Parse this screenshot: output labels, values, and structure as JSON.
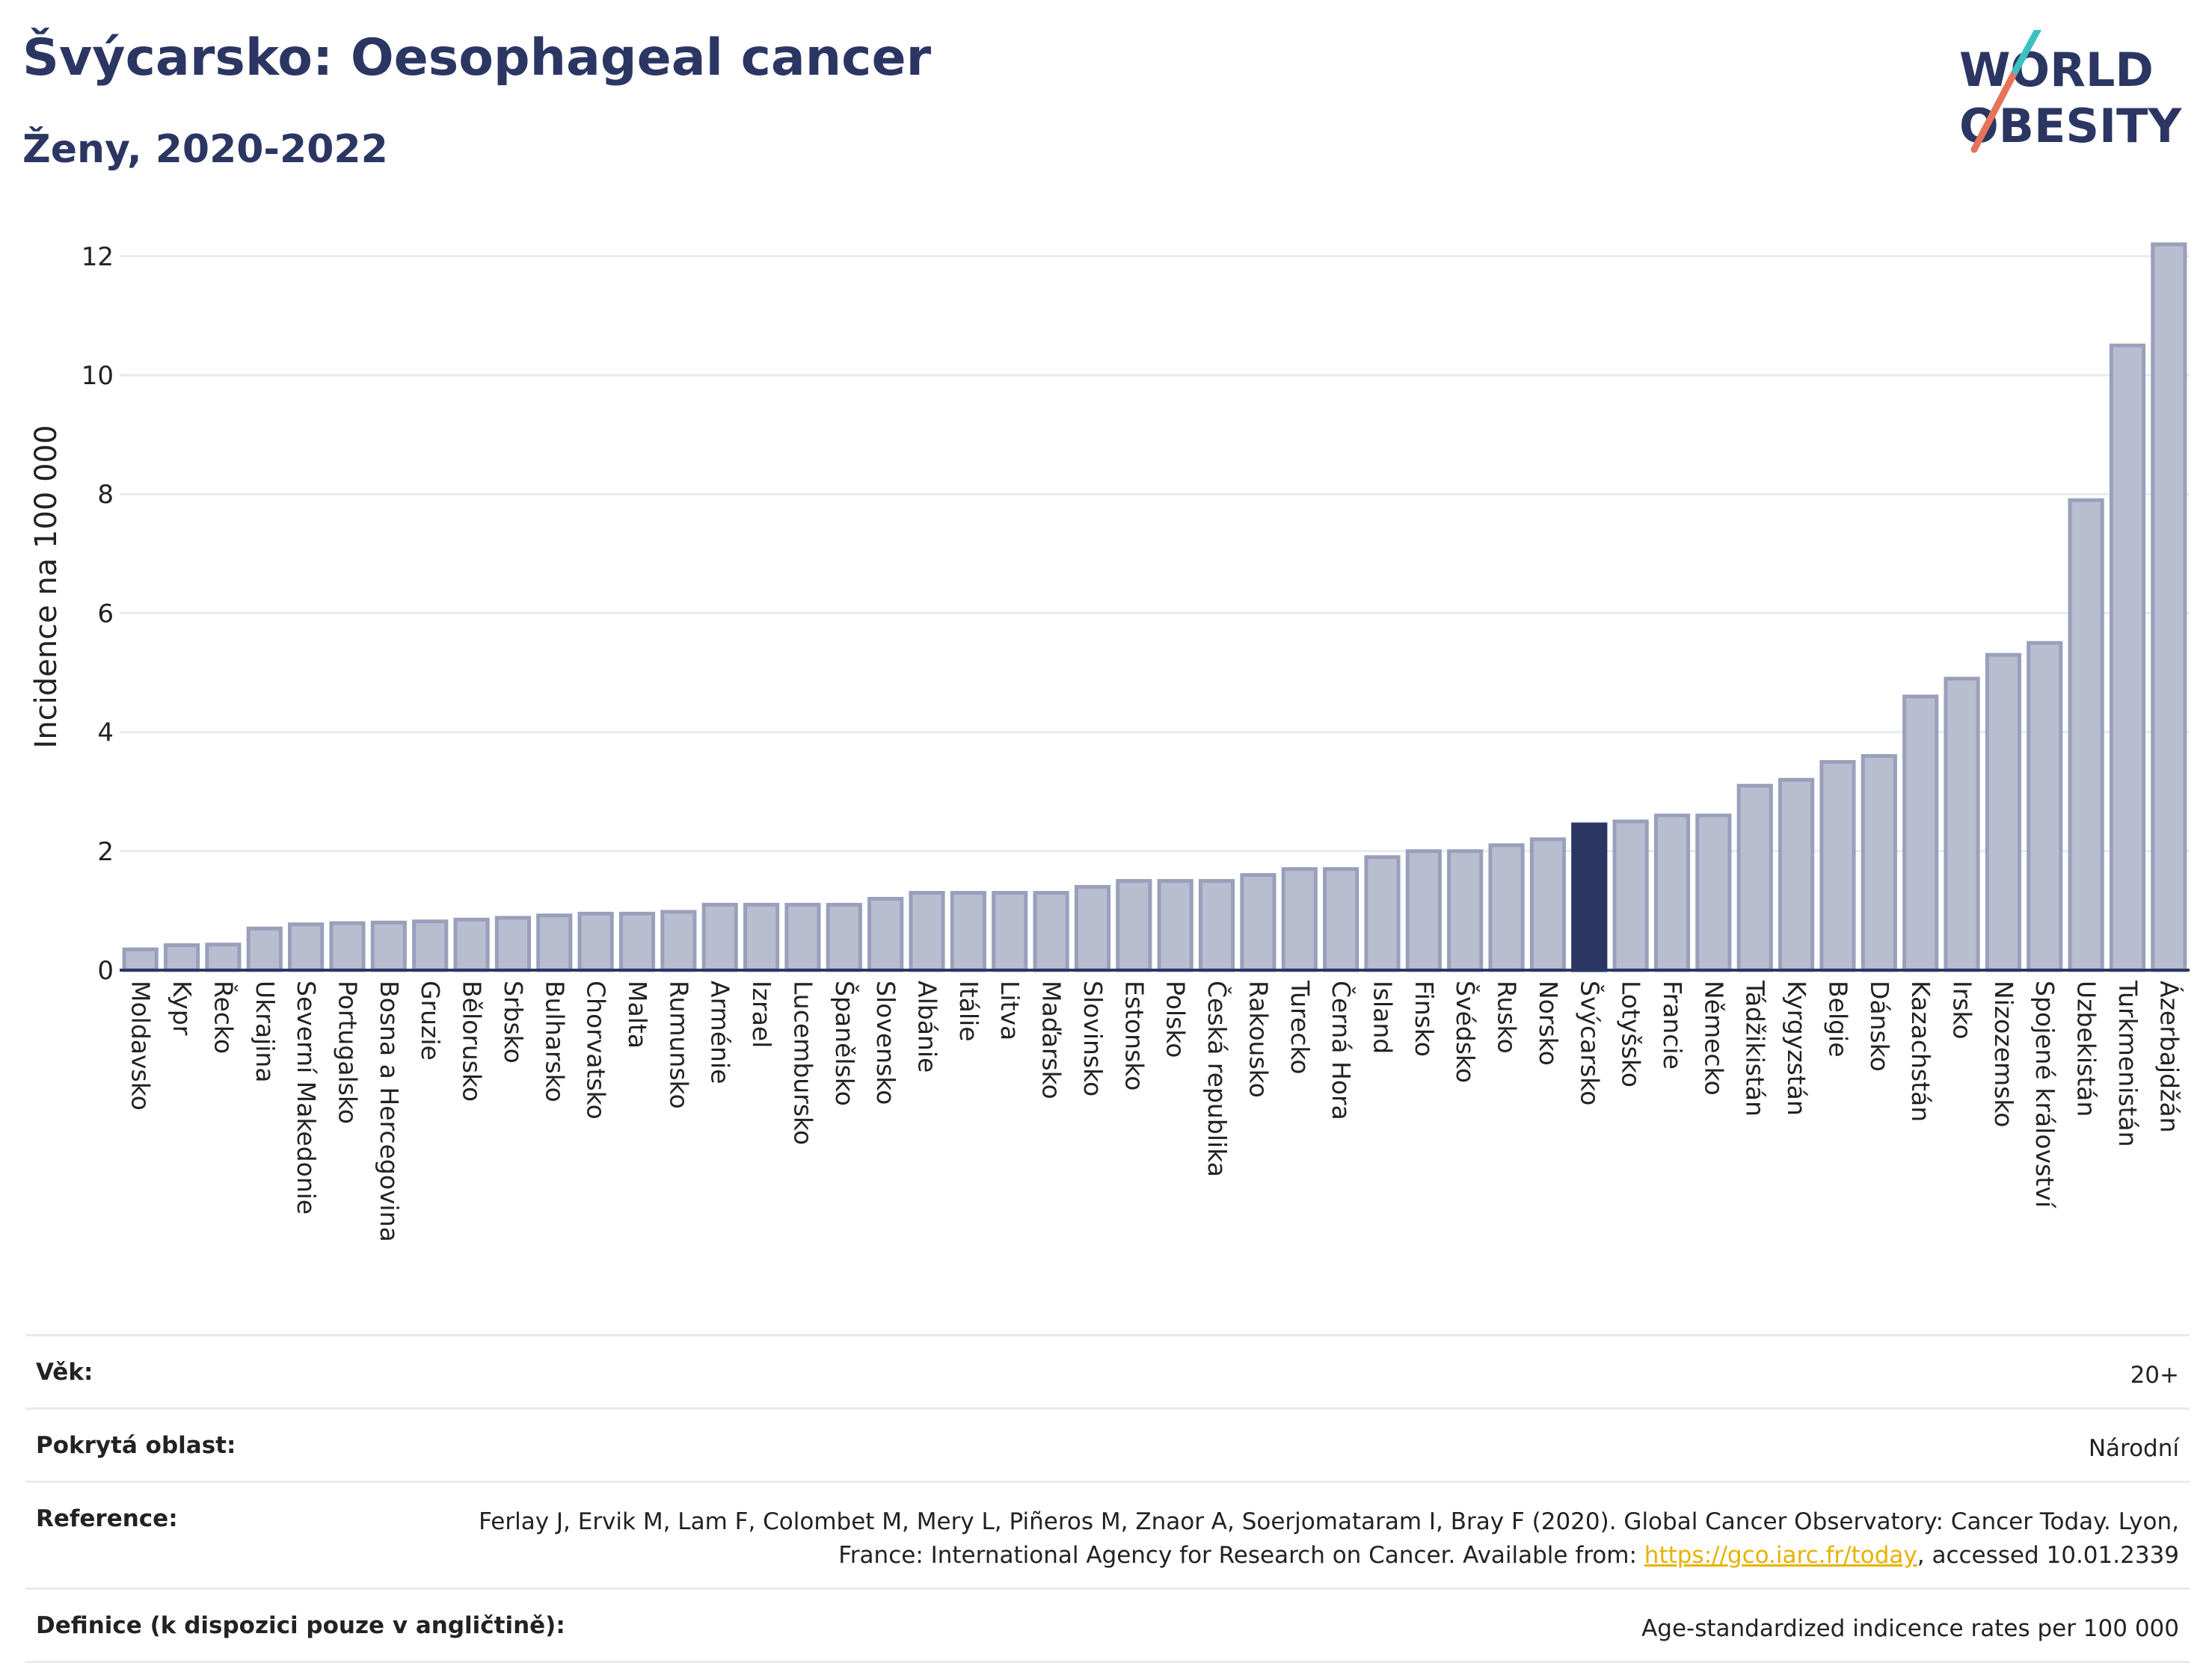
{
  "title": "Švýcarsko: Oesophageal cancer",
  "subtitle": "Ženy, 2020-2022",
  "logo": {
    "line1": "WORLD",
    "line2": "OBESITY",
    "accent_colors": [
      "#e8735a",
      "#3cc1c1"
    ]
  },
  "colors": {
    "bar": "#b9bdd0",
    "bar_stroke": "#9aa0bb",
    "highlight": "#2b3663",
    "grid": "#e6ebef",
    "axis": "#2b3663"
  },
  "chart_data": {
    "type": "bar",
    "ylabel": "Incidence na 100 000",
    "ylim": [
      0,
      12.5
    ],
    "yticks": [
      0,
      2,
      4,
      6,
      8,
      10,
      12
    ],
    "highlight": "Švýcarsko",
    "categories": [
      "Moldavsko",
      "Kypr",
      "Řecko",
      "Ukrajina",
      "Severní Makedonie",
      "Portugalsko",
      "Bosna a Hercegovina",
      "Gruzie",
      "Bělorusko",
      "Srbsko",
      "Bulharsko",
      "Chorvatsko",
      "Malta",
      "Rumunsko",
      "Arménie",
      "Izrael",
      "Lucembursko",
      "Španělsko",
      "Slovensko",
      "Albánie",
      "Itálie",
      "Litva",
      "Maďarsko",
      "Slovinsko",
      "Estonsko",
      "Polsko",
      "Česká republika",
      "Rakousko",
      "Turecko",
      "Černá Hora",
      "Island",
      "Finsko",
      "Švédsko",
      "Rusko",
      "Norsko",
      "Švýcarsko",
      "Lotyšsko",
      "Francie",
      "Německo",
      "Tádžikistán",
      "Kyrgyzstán",
      "Belgie",
      "Dánsko",
      "Kazachstán",
      "Irsko",
      "Nizozemsko",
      "Spojené království",
      "Uzbekistán",
      "Turkmenistán",
      "Ázerbajdžán"
    ],
    "values": [
      0.35,
      0.42,
      0.43,
      0.7,
      0.77,
      0.79,
      0.8,
      0.82,
      0.85,
      0.88,
      0.92,
      0.95,
      0.95,
      0.98,
      1.1,
      1.1,
      1.1,
      1.1,
      1.2,
      1.3,
      1.3,
      1.3,
      1.3,
      1.4,
      1.5,
      1.5,
      1.5,
      1.6,
      1.7,
      1.7,
      1.9,
      2.0,
      2.0,
      2.1,
      2.2,
      2.45,
      2.5,
      2.6,
      2.6,
      3.1,
      3.2,
      3.5,
      3.6,
      4.6,
      4.9,
      5.3,
      5.5,
      7.9,
      10.5,
      12.2
    ]
  },
  "meta": [
    {
      "key": "Věk:",
      "value": "20+"
    },
    {
      "key": "Pokrytá oblast:",
      "value": "Národní"
    },
    {
      "key": "Reference:",
      "value": "Ferlay J, Ervik M, Lam F, Colombet M, Mery L, Piñeros M, Znaor A, Soerjomataram I, Bray F (2020). Global Cancer Observatory: Cancer Today. Lyon, France: International Agency for Research on Cancer. Available from: ",
      "link": "https://gco.iarc.fr/today",
      "suffix": ", accessed 10.01.2339"
    },
    {
      "key": "Definice (k dispozici pouze v angličtině):",
      "value": "Age-standardized indicence rates per 100 000"
    }
  ]
}
